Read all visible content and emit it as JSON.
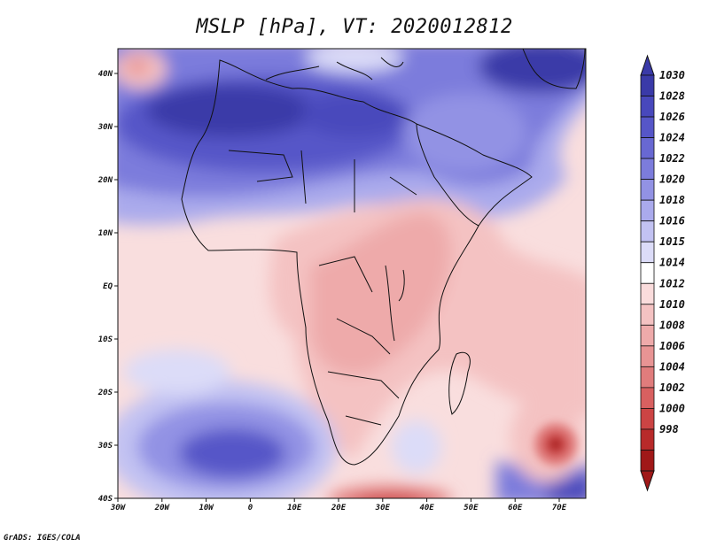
{
  "title": "MSLP [hPa], VT: 2020012812",
  "credit": "GrADS: IGES/COLA",
  "x_ticks": [
    "30W",
    "20W",
    "10W",
    "0",
    "10E",
    "20E",
    "30E",
    "40E",
    "50E",
    "60E",
    "70E"
  ],
  "y_ticks": [
    "40N",
    "30N",
    "20N",
    "10N",
    "EQ",
    "10S",
    "20S",
    "30S",
    "40S"
  ],
  "colorbar": {
    "labels": [
      "1030",
      "1028",
      "1026",
      "1024",
      "1022",
      "1020",
      "1018",
      "1016",
      "1015",
      "1014",
      "1012",
      "1010",
      "1008",
      "1006",
      "1004",
      "1002",
      "1000",
      "998"
    ],
    "colors": [
      "#3a3aa8",
      "#4848bc",
      "#5656c8",
      "#6868d2",
      "#7c7cdc",
      "#9292e4",
      "#aaaaec",
      "#c2c2f2",
      "#dcdcf8",
      "#ffffff",
      "#fadcdc",
      "#f4c2c2",
      "#eeaaaa",
      "#e89494",
      "#e07c7c",
      "#d86060",
      "#cc4444",
      "#b82a2a",
      "#a01818"
    ]
  },
  "map": {
    "region": "Africa",
    "variable": "MSLP",
    "units": "hPa",
    "valid_time": "2020012812",
    "lon_range": [
      -30,
      75
    ],
    "lat_range": [
      -40,
      45
    ]
  }
}
